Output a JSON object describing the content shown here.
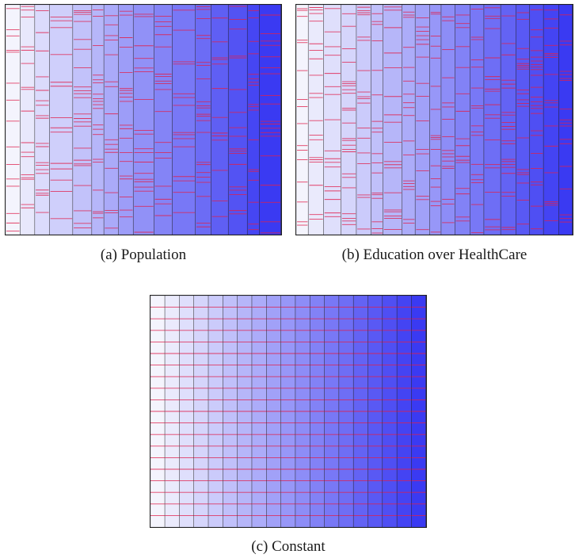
{
  "colors": {
    "light": "#f4f4fd",
    "dark": "#3a3af2",
    "line": "#e0204c",
    "border": "#222222"
  },
  "panels": [
    {
      "id": "a",
      "caption": "(a) Population",
      "column_widths": [
        17,
        17,
        17,
        27,
        22,
        14,
        17,
        17,
        24,
        21,
        27,
        18,
        20,
        22,
        14,
        25
      ]
    },
    {
      "id": "b",
      "caption": "(b) Education over HealthCare",
      "column_widths": [
        16,
        20,
        23,
        20,
        19,
        16,
        25,
        17,
        19,
        15,
        18,
        20,
        18,
        22,
        20,
        18,
        18,
        20,
        18
      ]
    },
    {
      "id": "c",
      "caption": "(c) Constant",
      "column_widths": [
        18,
        18,
        18,
        18,
        18,
        18,
        18,
        18,
        18,
        18,
        18,
        18,
        18,
        18,
        18,
        18,
        18,
        18,
        18
      ]
    }
  ]
}
